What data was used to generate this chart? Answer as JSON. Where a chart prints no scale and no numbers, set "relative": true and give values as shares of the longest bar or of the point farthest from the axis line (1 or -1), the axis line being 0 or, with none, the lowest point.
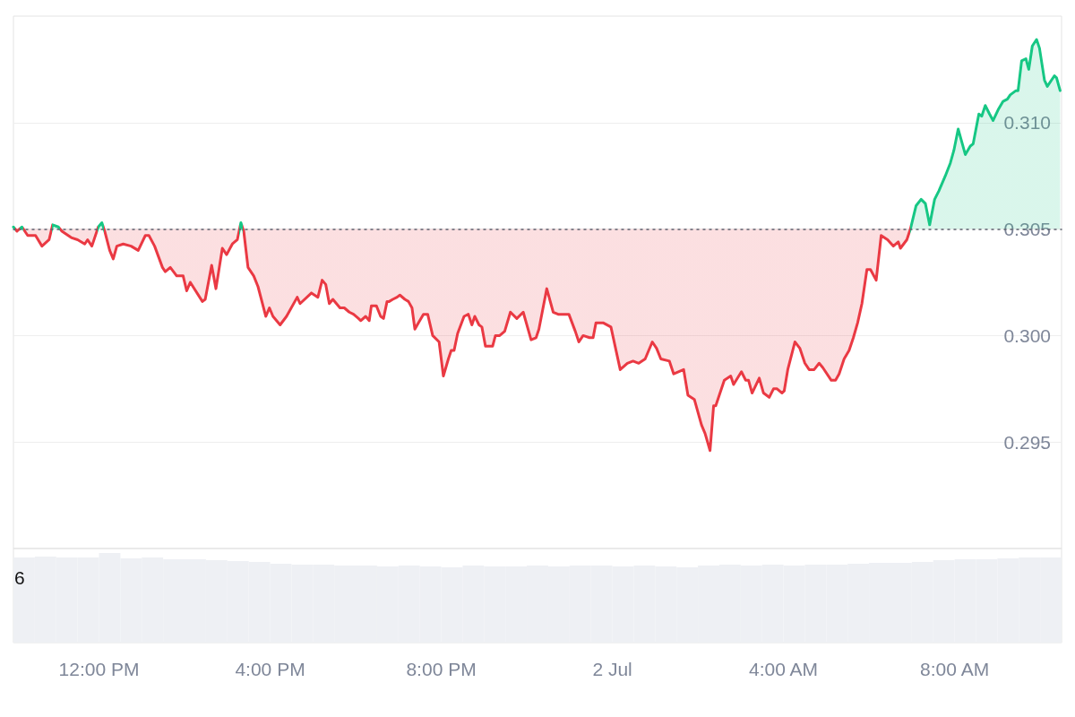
{
  "chart_data": [
    {
      "type": "area",
      "x": [
        "--07-01T10:00",
        "--07-01T10:05",
        "--07-01T10:12",
        "--07-01T10:16",
        "--07-01T10:20",
        "--07-01T10:31",
        "--07-01T10:40",
        "--07-01T10:50",
        "--07-01T10:55",
        "--07-01T11:03",
        "--07-01T11:08",
        "--07-01T11:21",
        "--07-01T11:30",
        "--07-01T11:40",
        "--07-01T11:44",
        "--07-01T11:50",
        "--07-01T11:59",
        "--07-01T12:04",
        "--07-01T12:08",
        "--07-01T12:15",
        "--07-01T12:20",
        "--07-01T12:25",
        "--07-01T12:34",
        "--07-01T12:45",
        "--07-01T12:55",
        "--07-01T13:05",
        "--07-01T13:10",
        "--07-01T13:18",
        "--07-01T13:29",
        "--07-01T13:33",
        "--07-01T13:40",
        "--07-01T13:49",
        "--07-01T13:58",
        "--07-01T14:03",
        "--07-01T14:08",
        "--07-01T14:25",
        "--07-01T14:29",
        "--07-01T14:38",
        "--07-01T14:44",
        "--07-01T14:53",
        "--07-01T14:59",
        "--07-01T15:07",
        "--07-01T15:14",
        "--07-01T15:19",
        "--07-01T15:23",
        "--07-01T15:29",
        "--07-01T15:37",
        "--07-01T15:43",
        "--07-01T15:54",
        "--07-01T15:59",
        "--07-01T16:04",
        "--07-01T16:14",
        "--07-01T16:23",
        "--07-01T16:38",
        "--07-01T16:42",
        "--07-01T16:58",
        "--07-01T17:07",
        "--07-01T17:13",
        "--07-01T17:18",
        "--07-01T17:23",
        "--07-01T17:28",
        "--07-01T17:38",
        "--07-01T17:44",
        "--07-01T17:51",
        "--07-01T17:57",
        "--07-01T18:04",
        "--07-01T18:07",
        "--07-01T18:14",
        "--07-01T18:19",
        "--07-01T18:22",
        "--07-01T18:29",
        "--07-01T18:35",
        "--07-01T18:39",
        "--07-01T18:44",
        "--07-01T18:47",
        "--07-01T18:52",
        "--07-01T18:58",
        "--07-01T19:02",
        "--07-01T19:09",
        "--07-01T19:14",
        "--07-01T19:19",
        "--07-01T19:23",
        "--07-01T19:28",
        "--07-01T19:35",
        "--07-01T19:41",
        "--07-01T19:48",
        "--07-01T19:57",
        "--07-01T20:03",
        "--07-01T20:10",
        "--07-01T20:14",
        "--07-01T20:18",
        "--07-01T20:23",
        "--07-01T20:32",
        "--07-01T20:38",
        "--07-01T20:43",
        "--07-01T20:47",
        "--07-01T20:53",
        "--07-01T20:57",
        "--07-01T21:02",
        "--07-01T21:12",
        "--07-01T21:16",
        "--07-01T21:22",
        "--07-01T21:29",
        "--07-01T21:37",
        "--07-01T21:46",
        "--07-01T21:55",
        "--07-01T22:06",
        "--07-01T22:13",
        "--07-01T22:17",
        "--07-01T22:28",
        "--07-01T22:37",
        "--07-01T22:44",
        "--07-01T22:59",
        "--07-01T23:08",
        "--07-01T23:13",
        "--07-01T23:19",
        "--07-01T23:28",
        "--07-01T23:33",
        "--07-01T23:37",
        "--07-01T23:47",
        "--07-01T23:58",
        "--07-02T00:11",
        "--07-02T00:21",
        "--07-02T00:29",
        "--07-02T00:37",
        "--07-02T00:46",
        "--07-02T00:56",
        "--07-02T01:02",
        "--07-02T01:08",
        "--07-02T01:20",
        "--07-02T01:26",
        "--07-02T01:40",
        "--07-02T01:46",
        "--07-02T01:55",
        "--07-02T02:05",
        "--07-02T02:10",
        "--07-02T02:17",
        "--07-02T02:22",
        "--07-02T02:25",
        "--07-02T02:37",
        "--07-02T02:46",
        "--07-02T02:50",
        "--07-02T03:01",
        "--07-02T03:07",
        "--07-02T03:11",
        "--07-02T03:16",
        "--07-02T03:26",
        "--07-02T03:32",
        "--07-02T03:40",
        "--07-02T03:46",
        "--07-02T03:51",
        "--07-02T03:58",
        "--07-02T04:01",
        "--07-02T04:06",
        "--07-02T04:16",
        "--07-02T04:23",
        "--07-02T04:30",
        "--07-02T04:36",
        "--07-02T04:43",
        "--07-02T04:50",
        "--07-02T04:55",
        "--07-02T05:07",
        "--07-02T05:13",
        "--07-02T05:18",
        "--07-02T05:25",
        "--07-02T05:32",
        "--07-02T05:38",
        "--07-02T05:44",
        "--07-02T05:50",
        "--07-02T05:57",
        "--07-02T06:02",
        "--07-02T06:10",
        "--07-02T06:17",
        "--07-02T06:26",
        "--07-02T06:34",
        "--07-02T06:41",
        "--07-02T06:44",
        "--07-02T06:53",
        "--07-02T06:58",
        "--07-02T07:06",
        "--07-02T07:13",
        "--07-02T07:19",
        "--07-02T07:25",
        "--07-02T07:32",
        "--07-02T07:38",
        "--07-02T07:47",
        "--07-02T07:54",
        "--07-02T07:59",
        "--07-02T08:05",
        "--07-02T08:15",
        "--07-02T08:22",
        "--07-02T08:26",
        "--07-02T08:34",
        "--07-02T08:38",
        "--07-02T08:43",
        "--07-02T08:49",
        "--07-02T08:54",
        "--07-02T09:01",
        "--07-02T09:08",
        "--07-02T09:14",
        "--07-02T09:18",
        "--07-02T09:26",
        "--07-02T09:29",
        "--07-02T09:34",
        "--07-02T09:40",
        "--07-02T09:44",
        "--07-02T09:49",
        "--07-02T09:55",
        "--07-02T09:59",
        "--07-02T10:06",
        "--07-02T10:10",
        "--07-02T10:20",
        "--07-02T10:23",
        "--07-02T10:28"
      ],
      "values": [
        0.3051,
        0.3049,
        0.3051,
        0.3049,
        0.3047,
        0.3047,
        0.3042,
        0.3045,
        0.3052,
        0.3051,
        0.3049,
        0.3046,
        0.3045,
        0.3043,
        0.3045,
        0.3042,
        0.3051,
        0.3053,
        0.3049,
        0.304,
        0.3036,
        0.3042,
        0.3043,
        0.3042,
        0.304,
        0.3047,
        0.3047,
        0.3042,
        0.3032,
        0.303,
        0.3032,
        0.3028,
        0.3028,
        0.3021,
        0.3025,
        0.3016,
        0.3017,
        0.3033,
        0.3022,
        0.3041,
        0.3038,
        0.3043,
        0.3045,
        0.3053,
        0.3049,
        0.3032,
        0.3028,
        0.3023,
        0.3009,
        0.3013,
        0.3009,
        0.3005,
        0.3009,
        0.3018,
        0.3015,
        0.302,
        0.3018,
        0.3026,
        0.3024,
        0.3015,
        0.3017,
        0.3013,
        0.3013,
        0.3011,
        0.301,
        0.3008,
        0.3007,
        0.3009,
        0.3007,
        0.3014,
        0.3014,
        0.3009,
        0.3008,
        0.3016,
        0.3016,
        0.3017,
        0.3018,
        0.3019,
        0.3017,
        0.3016,
        0.3013,
        0.3003,
        0.3006,
        0.301,
        0.301,
        0.3,
        0.2997,
        0.2981,
        0.2989,
        0.2993,
        0.2993,
        0.3001,
        0.3009,
        0.301,
        0.3005,
        0.3009,
        0.3005,
        0.3004,
        0.2995,
        0.2995,
        0.3,
        0.3,
        0.3002,
        0.3011,
        0.3008,
        0.3011,
        0.2998,
        0.2999,
        0.3003,
        0.3022,
        0.3011,
        0.301,
        0.301,
        0.3002,
        0.2997,
        0.3,
        0.2999,
        0.2999,
        0.3006,
        0.3006,
        0.3004,
        0.2984,
        0.2987,
        0.2988,
        0.2987,
        0.2989,
        0.2997,
        0.2994,
        0.2989,
        0.2988,
        0.2982,
        0.2984,
        0.2972,
        0.297,
        0.2958,
        0.2954,
        0.2946,
        0.2967,
        0.2967,
        0.2979,
        0.2981,
        0.2977,
        0.2983,
        0.2979,
        0.2979,
        0.2973,
        0.298,
        0.2973,
        0.2971,
        0.2975,
        0.2975,
        0.2973,
        0.2974,
        0.2984,
        0.2997,
        0.2994,
        0.2987,
        0.2984,
        0.2984,
        0.2987,
        0.2985,
        0.2979,
        0.2979,
        0.2982,
        0.2989,
        0.2993,
        0.2999,
        0.3006,
        0.3015,
        0.3031,
        0.3031,
        0.3026,
        0.3047,
        0.3045,
        0.3042,
        0.3044,
        0.3041,
        0.3045,
        0.305,
        0.3061,
        0.3064,
        0.3062,
        0.3052,
        0.3064,
        0.3068,
        0.3075,
        0.3081,
        0.3087,
        0.3097,
        0.3085,
        0.3089,
        0.309,
        0.3104,
        0.3103,
        0.3108,
        0.3104,
        0.3101,
        0.3106,
        0.311,
        0.3111,
        0.3113,
        0.3115,
        0.3115,
        0.3129,
        0.313,
        0.3125,
        0.3136,
        0.3139,
        0.3135,
        0.312,
        0.3117,
        0.3122,
        0.3121,
        0.3115
      ],
      "colors": [
        "#16c784",
        "#ea3943",
        "#16c784",
        "#ea3943",
        "#ea3943",
        "#ea3943",
        "#ea3943",
        "#ea3943",
        "#16c784",
        "#16c784",
        "#ea3943",
        "#ea3943",
        "#ea3943",
        "#ea3943",
        "#ea3943",
        "#ea3943",
        "#16c784",
        "#16c784",
        "#ea3943",
        "#ea3943",
        "#ea3943",
        "#ea3943",
        "#ea3943",
        "#ea3943",
        "#ea3943",
        "#ea3943",
        "#ea3943",
        "#ea3943",
        "#ea3943",
        "#ea3943",
        "#ea3943",
        "#ea3943",
        "#ea3943",
        "#ea3943",
        "#ea3943",
        "#ea3943",
        "#ea3943",
        "#ea3943",
        "#ea3943",
        "#ea3943",
        "#ea3943",
        "#ea3943",
        "#ea3943",
        "#16c784",
        "#ea3943",
        "#ea3943",
        "#ea3943",
        "#ea3943",
        "#ea3943",
        "#ea3943",
        "#ea3943",
        "#ea3943",
        "#ea3943",
        "#ea3943",
        "#ea3943",
        "#ea3943",
        "#ea3943",
        "#ea3943",
        "#ea3943",
        "#ea3943",
        "#ea3943",
        "#ea3943",
        "#ea3943",
        "#ea3943",
        "#ea3943",
        "#ea3943",
        "#ea3943",
        "#ea3943",
        "#ea3943",
        "#ea3943",
        "#ea3943",
        "#ea3943",
        "#ea3943",
        "#ea3943",
        "#ea3943",
        "#ea3943",
        "#ea3943",
        "#ea3943",
        "#ea3943",
        "#ea3943",
        "#ea3943",
        "#ea3943",
        "#ea3943",
        "#ea3943",
        "#ea3943",
        "#ea3943",
        "#ea3943",
        "#ea3943",
        "#ea3943",
        "#ea3943",
        "#ea3943",
        "#ea3943",
        "#ea3943",
        "#ea3943",
        "#ea3943",
        "#ea3943",
        "#ea3943",
        "#ea3943",
        "#ea3943",
        "#ea3943",
        "#ea3943",
        "#ea3943",
        "#ea3943",
        "#ea3943",
        "#ea3943",
        "#ea3943",
        "#ea3943",
        "#ea3943",
        "#ea3943",
        "#ea3943",
        "#ea3943",
        "#ea3943",
        "#ea3943",
        "#ea3943",
        "#ea3943",
        "#ea3943",
        "#ea3943",
        "#ea3943",
        "#ea3943",
        "#ea3943",
        "#ea3943",
        "#ea3943",
        "#ea3943",
        "#ea3943",
        "#ea3943",
        "#ea3943",
        "#ea3943",
        "#ea3943",
        "#ea3943",
        "#ea3943",
        "#ea3943",
        "#ea3943",
        "#ea3943",
        "#ea3943",
        "#ea3943",
        "#ea3943",
        "#ea3943",
        "#ea3943",
        "#ea3943",
        "#ea3943",
        "#ea3943",
        "#ea3943",
        "#ea3943",
        "#ea3943",
        "#ea3943",
        "#ea3943",
        "#ea3943",
        "#ea3943",
        "#ea3943",
        "#ea3943",
        "#ea3943",
        "#ea3943",
        "#ea3943",
        "#ea3943",
        "#ea3943",
        "#ea3943",
        "#ea3943",
        "#ea3943",
        "#ea3943",
        "#ea3943",
        "#ea3943",
        "#ea3943",
        "#ea3943",
        "#ea3943",
        "#ea3943",
        "#ea3943",
        "#ea3943",
        "#ea3943",
        "#ea3943",
        "#ea3943",
        "#ea3943",
        "#ea3943",
        "#ea3943",
        "#ea3943",
        "#ea3943",
        "#ea3943",
        "#ea3943",
        "#ea3943",
        "#16c784",
        "#16c784",
        "#16c784",
        "#16c784",
        "#16c784",
        "#16c784",
        "#16c784",
        "#16c784",
        "#16c784",
        "#16c784",
        "#16c784",
        "#16c784",
        "#16c784",
        "#16c784",
        "#16c784",
        "#16c784",
        "#16c784",
        "#16c784",
        "#16c784",
        "#16c784",
        "#16c784",
        "#16c784",
        "#16c784",
        "#16c784",
        "#16c784",
        "#16c784",
        "#16c784",
        "#16c784",
        "#16c784",
        "#16c784",
        "#16c784",
        "#16c784",
        "#16c784",
        "#16c784",
        "#16c784",
        "#16c784"
      ],
      "xlim": [
        "--07-01T10:00",
        "--07-02T10:30"
      ],
      "ylim": [
        0.29,
        0.315
      ],
      "yticks": [
        0.295,
        {
          "value": 0.3,
          "label": "0.300"
        },
        0.305,
        {
          "value": 0.31,
          "label": "0.310"
        }
      ],
      "grid": "y",
      "tick_labels": "y",
      "ref_lines": [
        {
          "axis": "y",
          "value": 0.305,
          "line_style": "dotted",
          "color": "#5f6370"
        }
      ]
    },
    {
      "type": "bar",
      "relative": true,
      "x": [
        "--07-01T10:15",
        "--07-01T10:45",
        "--07-01T11:15",
        "--07-01T11:45",
        "--07-01T12:15",
        "--07-01T12:45",
        "--07-01T13:15",
        "--07-01T13:45",
        "--07-01T14:15",
        "--07-01T14:45",
        "--07-01T15:15",
        "--07-01T15:45",
        "--07-01T16:15",
        "--07-01T16:45",
        "--07-01T17:15",
        "--07-01T17:45",
        "--07-01T18:15",
        "--07-01T18:45",
        "--07-01T19:15",
        "--07-01T19:45",
        "--07-01T20:15",
        "--07-01T20:45",
        "--07-01T21:15",
        "--07-01T21:45",
        "--07-01T22:15",
        "--07-01T22:45",
        "--07-01T23:15",
        "--07-01T23:45",
        "--07-02T00:15",
        "--07-02T00:45",
        "--07-02T01:15",
        "--07-02T01:45",
        "--07-02T02:15",
        "--07-02T02:45",
        "--07-02T03:15",
        "--07-02T03:45",
        "--07-02T04:15",
        "--07-02T04:45",
        "--07-02T05:15",
        "--07-02T05:45",
        "--07-02T06:15",
        "--07-02T06:45",
        "--07-02T07:15",
        "--07-02T07:45",
        "--07-02T08:15",
        "--07-02T08:45",
        "--07-02T09:15",
        "--07-02T09:45",
        "--07-02T10:15"
      ],
      "values": [
        0.95,
        0.96,
        0.95,
        0.95,
        1,
        0.94,
        0.95,
        0.93,
        0.93,
        0.92,
        0.91,
        0.9,
        0.88,
        0.87,
        0.87,
        0.86,
        0.86,
        0.85,
        0.86,
        0.85,
        0.84,
        0.86,
        0.85,
        0.85,
        0.86,
        0.85,
        0.86,
        0.86,
        0.85,
        0.86,
        0.85,
        0.84,
        0.86,
        0.87,
        0.86,
        0.87,
        0.86,
        0.87,
        0.87,
        0.88,
        0.89,
        0.89,
        0.9,
        0.92,
        0.93,
        0.93,
        0.94,
        0.95,
        0.95
      ],
      "color": "#eef0f4",
      "xlim": [
        "--07-01T10:00",
        "--07-02T10:30"
      ],
      "xticks": [
        {
          "value": "--07-01T12:00",
          "label": "12:00 PM"
        },
        {
          "value": "--07-01T16:00",
          "label": "4:00 PM"
        },
        {
          "value": "--07-01T20:00",
          "label": "8:00 PM"
        },
        {
          "value": "--07-02",
          "label": "2 Jul"
        },
        {
          "value": "--07-02T04:00",
          "label": "4:00 AM"
        },
        {
          "value": "--07-02T08:00",
          "label": "8:00 AM"
        }
      ],
      "tick_labels": "x",
      "annotations": [
        "6"
      ]
    }
  ]
}
